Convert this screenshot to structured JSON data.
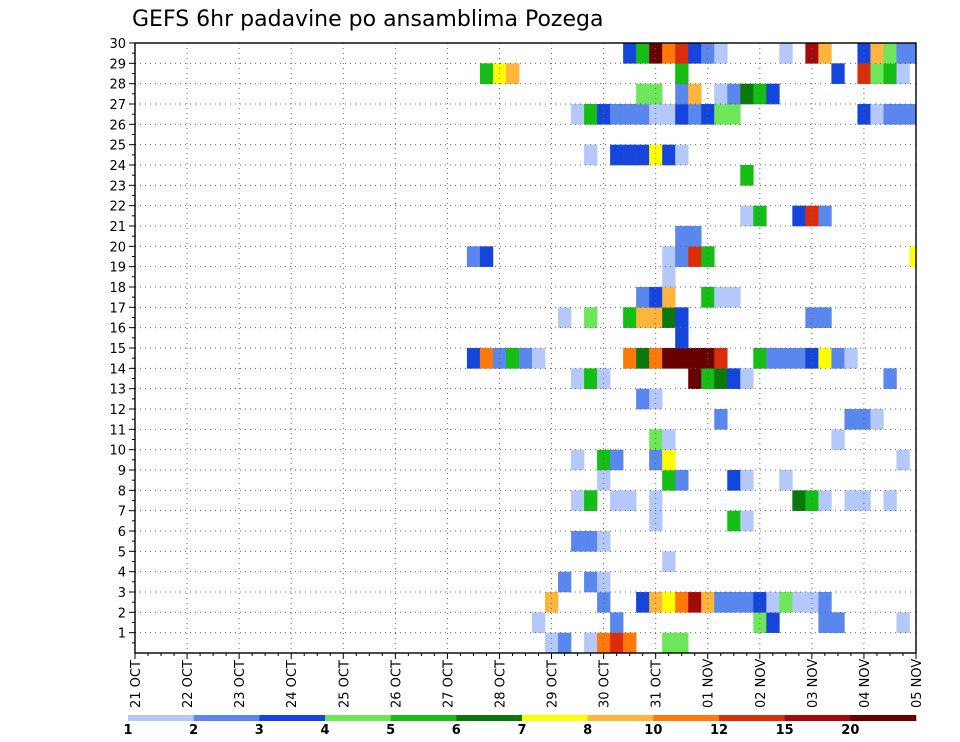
{
  "chart_data": {
    "type": "heatmap",
    "title": "GEFS 6hr padavine po ansamblima Pozega",
    "xlabel": "",
    "ylabel": "",
    "x_axis": {
      "ticks": [
        "21 OCT",
        "22 OCT",
        "23 OCT",
        "24 OCT",
        "25 OCT",
        "26 OCT",
        "27 OCT",
        "28 OCT",
        "29 OCT",
        "30 OCT",
        "31 OCT",
        "01 NOV",
        "02 NOV",
        "03 NOV",
        "04 NOV",
        "05 NOV"
      ],
      "step": "6hr"
    },
    "y_axis": {
      "ticks": [
        "1",
        "2",
        "3",
        "4",
        "5",
        "6",
        "7",
        "8",
        "9",
        "10",
        "11",
        "12",
        "13",
        "14",
        "15",
        "16",
        "17",
        "18",
        "19",
        "20",
        "21",
        "22",
        "23",
        "24",
        "25",
        "26",
        "27",
        "28",
        "29",
        "30"
      ],
      "ylim": [
        0,
        30
      ]
    },
    "grid": true,
    "colorbar": {
      "labels": [
        "1",
        "2",
        "3",
        "4",
        "5",
        "6",
        "7",
        "8",
        "10",
        "12",
        "15",
        "20"
      ],
      "colors": [
        "#b4c8fa",
        "#5a87ee",
        "#1446dc",
        "#6ee65a",
        "#14be14",
        "#0a780a",
        "#ffff00",
        "#ffb43c",
        "#ff780a",
        "#dc2d0a",
        "#a50a0a",
        "#690000"
      ]
    },
    "cells": [
      {
        "m": 0,
        "t": 32,
        "c": 0
      },
      {
        "m": 0,
        "t": 33,
        "c": 1
      },
      {
        "m": 0,
        "t": 35,
        "c": 0
      },
      {
        "m": 0,
        "t": 36,
        "c": 8
      },
      {
        "m": 0,
        "t": 37,
        "c": 9
      },
      {
        "m": 0,
        "t": 38,
        "c": 8
      },
      {
        "m": 0,
        "t": 41,
        "c": 3
      },
      {
        "m": 0,
        "t": 42,
        "c": 3
      },
      {
        "m": 1,
        "t": 31,
        "c": 0
      },
      {
        "m": 1,
        "t": 37,
        "c": 1
      },
      {
        "m": 1,
        "t": 48,
        "c": 3
      },
      {
        "m": 1,
        "t": 49,
        "c": 2
      },
      {
        "m": 1,
        "t": 53,
        "c": 1
      },
      {
        "m": 1,
        "t": 54,
        "c": 1
      },
      {
        "m": 1,
        "t": 59,
        "c": 0
      },
      {
        "m": 2,
        "t": 32,
        "c": 7
      },
      {
        "m": 2,
        "t": 36,
        "c": 1
      },
      {
        "m": 2,
        "t": 39,
        "c": 2
      },
      {
        "m": 2,
        "t": 40,
        "c": 7
      },
      {
        "m": 2,
        "t": 41,
        "c": 6
      },
      {
        "m": 2,
        "t": 42,
        "c": 8
      },
      {
        "m": 2,
        "t": 43,
        "c": 10
      },
      {
        "m": 2,
        "t": 44,
        "c": 7
      },
      {
        "m": 2,
        "t": 45,
        "c": 1
      },
      {
        "m": 2,
        "t": 46,
        "c": 1
      },
      {
        "m": 2,
        "t": 47,
        "c": 1
      },
      {
        "m": 2,
        "t": 48,
        "c": 2
      },
      {
        "m": 2,
        "t": 49,
        "c": 0
      },
      {
        "m": 2,
        "t": 50,
        "c": 3
      },
      {
        "m": 2,
        "t": 51,
        "c": 0
      },
      {
        "m": 2,
        "t": 52,
        "c": 0
      },
      {
        "m": 2,
        "t": 53,
        "c": 1
      },
      {
        "m": 3,
        "t": 33,
        "c": 1
      },
      {
        "m": 3,
        "t": 35,
        "c": 1
      },
      {
        "m": 3,
        "t": 36,
        "c": 0
      },
      {
        "m": 4,
        "t": 41,
        "c": 0
      },
      {
        "m": 5,
        "t": 34,
        "c": 1
      },
      {
        "m": 5,
        "t": 35,
        "c": 1
      },
      {
        "m": 5,
        "t": 36,
        "c": 0
      },
      {
        "m": 6,
        "t": 40,
        "c": 0
      },
      {
        "m": 6,
        "t": 46,
        "c": 4
      },
      {
        "m": 6,
        "t": 47,
        "c": 0
      },
      {
        "m": 7,
        "t": 34,
        "c": 0
      },
      {
        "m": 7,
        "t": 35,
        "c": 4
      },
      {
        "m": 7,
        "t": 37,
        "c": 0
      },
      {
        "m": 7,
        "t": 38,
        "c": 0
      },
      {
        "m": 7,
        "t": 40,
        "c": 0
      },
      {
        "m": 7,
        "t": 51,
        "c": 5
      },
      {
        "m": 7,
        "t": 52,
        "c": 4
      },
      {
        "m": 7,
        "t": 53,
        "c": 0
      },
      {
        "m": 7,
        "t": 55,
        "c": 0
      },
      {
        "m": 7,
        "t": 56,
        "c": 0
      },
      {
        "m": 7,
        "t": 58,
        "c": 0
      },
      {
        "m": 8,
        "t": 36,
        "c": 0
      },
      {
        "m": 8,
        "t": 41,
        "c": 4
      },
      {
        "m": 8,
        "t": 42,
        "c": 1
      },
      {
        "m": 8,
        "t": 46,
        "c": 2
      },
      {
        "m": 8,
        "t": 47,
        "c": 0
      },
      {
        "m": 8,
        "t": 50,
        "c": 0
      },
      {
        "m": 9,
        "t": 34,
        "c": 0
      },
      {
        "m": 9,
        "t": 36,
        "c": 4
      },
      {
        "m": 9,
        "t": 37,
        "c": 1
      },
      {
        "m": 9,
        "t": 40,
        "c": 1
      },
      {
        "m": 9,
        "t": 41,
        "c": 6
      },
      {
        "m": 9,
        "t": 59,
        "c": 0
      },
      {
        "m": 10,
        "t": 40,
        "c": 3
      },
      {
        "m": 10,
        "t": 41,
        "c": 0
      },
      {
        "m": 10,
        "t": 54,
        "c": 0
      },
      {
        "m": 11,
        "t": 45,
        "c": 1
      },
      {
        "m": 11,
        "t": 55,
        "c": 1
      },
      {
        "m": 11,
        "t": 56,
        "c": 1
      },
      {
        "m": 11,
        "t": 57,
        "c": 0
      },
      {
        "m": 12,
        "t": 39,
        "c": 1
      },
      {
        "m": 12,
        "t": 40,
        "c": 0
      },
      {
        "m": 13,
        "t": 34,
        "c": 0
      },
      {
        "m": 13,
        "t": 35,
        "c": 4
      },
      {
        "m": 13,
        "t": 36,
        "c": 0
      },
      {
        "m": 13,
        "t": 43,
        "c": 11
      },
      {
        "m": 13,
        "t": 44,
        "c": 4
      },
      {
        "m": 13,
        "t": 45,
        "c": 5
      },
      {
        "m": 13,
        "t": 46,
        "c": 2
      },
      {
        "m": 13,
        "t": 47,
        "c": 0
      },
      {
        "m": 13,
        "t": 58,
        "c": 1
      },
      {
        "m": 14,
        "t": 26,
        "c": 2
      },
      {
        "m": 14,
        "t": 27,
        "c": 8
      },
      {
        "m": 14,
        "t": 28,
        "c": 1
      },
      {
        "m": 14,
        "t": 29,
        "c": 4
      },
      {
        "m": 14,
        "t": 30,
        "c": 1
      },
      {
        "m": 14,
        "t": 31,
        "c": 0
      },
      {
        "m": 14,
        "t": 38,
        "c": 8
      },
      {
        "m": 14,
        "t": 39,
        "c": 5
      },
      {
        "m": 14,
        "t": 40,
        "c": 8
      },
      {
        "m": 14,
        "t": 41,
        "c": 11
      },
      {
        "m": 14,
        "t": 42,
        "c": 11
      },
      {
        "m": 14,
        "t": 43,
        "c": 11
      },
      {
        "m": 14,
        "t": 44,
        "c": 11
      },
      {
        "m": 14,
        "t": 45,
        "c": 9
      },
      {
        "m": 14,
        "t": 48,
        "c": 4
      },
      {
        "m": 14,
        "t": 49,
        "c": 1
      },
      {
        "m": 14,
        "t": 50,
        "c": 1
      },
      {
        "m": 14,
        "t": 51,
        "c": 1
      },
      {
        "m": 14,
        "t": 52,
        "c": 2
      },
      {
        "m": 14,
        "t": 53,
        "c": 6
      },
      {
        "m": 14,
        "t": 54,
        "c": 1
      },
      {
        "m": 14,
        "t": 55,
        "c": 0
      },
      {
        "m": 15,
        "t": 42,
        "c": 2
      },
      {
        "m": 16,
        "t": 33,
        "c": 0
      },
      {
        "m": 16,
        "t": 35,
        "c": 3
      },
      {
        "m": 16,
        "t": 38,
        "c": 4
      },
      {
        "m": 16,
        "t": 39,
        "c": 7
      },
      {
        "m": 16,
        "t": 40,
        "c": 7
      },
      {
        "m": 16,
        "t": 41,
        "c": 5
      },
      {
        "m": 16,
        "t": 42,
        "c": 2
      },
      {
        "m": 16,
        "t": 52,
        "c": 1
      },
      {
        "m": 16,
        "t": 53,
        "c": 1
      },
      {
        "m": 17,
        "t": 39,
        "c": 1
      },
      {
        "m": 17,
        "t": 40,
        "c": 2
      },
      {
        "m": 17,
        "t": 41,
        "c": 7
      },
      {
        "m": 17,
        "t": 44,
        "c": 4
      },
      {
        "m": 17,
        "t": 45,
        "c": 0
      },
      {
        "m": 17,
        "t": 46,
        "c": 0
      },
      {
        "m": 18,
        "t": 41,
        "c": 0
      },
      {
        "m": 19,
        "t": 26,
        "c": 1
      },
      {
        "m": 19,
        "t": 27,
        "c": 2
      },
      {
        "m": 19,
        "t": 41,
        "c": 0
      },
      {
        "m": 19,
        "t": 42,
        "c": 1
      },
      {
        "m": 19,
        "t": 43,
        "c": 9
      },
      {
        "m": 19,
        "t": 44,
        "c": 4
      },
      {
        "m": 19,
        "t": 60,
        "c": 6
      },
      {
        "m": 20,
        "t": 42,
        "c": 1
      },
      {
        "m": 20,
        "t": 43,
        "c": 1
      },
      {
        "m": 21,
        "t": 47,
        "c": 0
      },
      {
        "m": 21,
        "t": 48,
        "c": 4
      },
      {
        "m": 21,
        "t": 51,
        "c": 2
      },
      {
        "m": 21,
        "t": 52,
        "c": 9
      },
      {
        "m": 21,
        "t": 53,
        "c": 1
      },
      {
        "m": 23,
        "t": 47,
        "c": 4
      },
      {
        "m": 24,
        "t": 35,
        "c": 0
      },
      {
        "m": 24,
        "t": 37,
        "c": 2
      },
      {
        "m": 24,
        "t": 38,
        "c": 2
      },
      {
        "m": 24,
        "t": 39,
        "c": 2
      },
      {
        "m": 24,
        "t": 40,
        "c": 6
      },
      {
        "m": 24,
        "t": 41,
        "c": 2
      },
      {
        "m": 24,
        "t": 42,
        "c": 0
      },
      {
        "m": 26,
        "t": 34,
        "c": 0
      },
      {
        "m": 26,
        "t": 35,
        "c": 4
      },
      {
        "m": 26,
        "t": 36,
        "c": 2
      },
      {
        "m": 26,
        "t": 37,
        "c": 1
      },
      {
        "m": 26,
        "t": 38,
        "c": 1
      },
      {
        "m": 26,
        "t": 39,
        "c": 1
      },
      {
        "m": 26,
        "t": 40,
        "c": 0
      },
      {
        "m": 26,
        "t": 41,
        "c": 0
      },
      {
        "m": 26,
        "t": 42,
        "c": 2
      },
      {
        "m": 26,
        "t": 43,
        "c": 1
      },
      {
        "m": 26,
        "t": 44,
        "c": 2
      },
      {
        "m": 26,
        "t": 45,
        "c": 3
      },
      {
        "m": 26,
        "t": 46,
        "c": 3
      },
      {
        "m": 26,
        "t": 56,
        "c": 2
      },
      {
        "m": 26,
        "t": 57,
        "c": 0
      },
      {
        "m": 26,
        "t": 58,
        "c": 1
      },
      {
        "m": 26,
        "t": 59,
        "c": 1
      },
      {
        "m": 26,
        "t": 60,
        "c": 1
      },
      {
        "m": 27,
        "t": 39,
        "c": 3
      },
      {
        "m": 27,
        "t": 40,
        "c": 3
      },
      {
        "m": 27,
        "t": 42,
        "c": 1
      },
      {
        "m": 27,
        "t": 43,
        "c": 7
      },
      {
        "m": 27,
        "t": 45,
        "c": 0
      },
      {
        "m": 27,
        "t": 46,
        "c": 1
      },
      {
        "m": 27,
        "t": 47,
        "c": 5
      },
      {
        "m": 27,
        "t": 48,
        "c": 4
      },
      {
        "m": 27,
        "t": 49,
        "c": 2
      },
      {
        "m": 28,
        "t": 27,
        "c": 4
      },
      {
        "m": 28,
        "t": 28,
        "c": 6
      },
      {
        "m": 28,
        "t": 29,
        "c": 7
      },
      {
        "m": 28,
        "t": 42,
        "c": 4
      },
      {
        "m": 28,
        "t": 54,
        "c": 2
      },
      {
        "m": 28,
        "t": 56,
        "c": 9
      },
      {
        "m": 28,
        "t": 57,
        "c": 3
      },
      {
        "m": 28,
        "t": 58,
        "c": 4
      },
      {
        "m": 28,
        "t": 59,
        "c": 0
      },
      {
        "m": 29,
        "t": 38,
        "c": 2
      },
      {
        "m": 29,
        "t": 39,
        "c": 4
      },
      {
        "m": 29,
        "t": 40,
        "c": 11
      },
      {
        "m": 29,
        "t": 41,
        "c": 8
      },
      {
        "m": 29,
        "t": 42,
        "c": 9
      },
      {
        "m": 29,
        "t": 43,
        "c": 2
      },
      {
        "m": 29,
        "t": 44,
        "c": 1
      },
      {
        "m": 29,
        "t": 45,
        "c": 0
      },
      {
        "m": 29,
        "t": 50,
        "c": 0
      },
      {
        "m": 29,
        "t": 52,
        "c": 10
      },
      {
        "m": 29,
        "t": 53,
        "c": 7
      },
      {
        "m": 29,
        "t": 56,
        "c": 2
      },
      {
        "m": 29,
        "t": 57,
        "c": 7
      },
      {
        "m": 29,
        "t": 58,
        "c": 3
      },
      {
        "m": 29,
        "t": 59,
        "c": 1
      },
      {
        "m": 29,
        "t": 60,
        "c": 1
      }
    ]
  }
}
